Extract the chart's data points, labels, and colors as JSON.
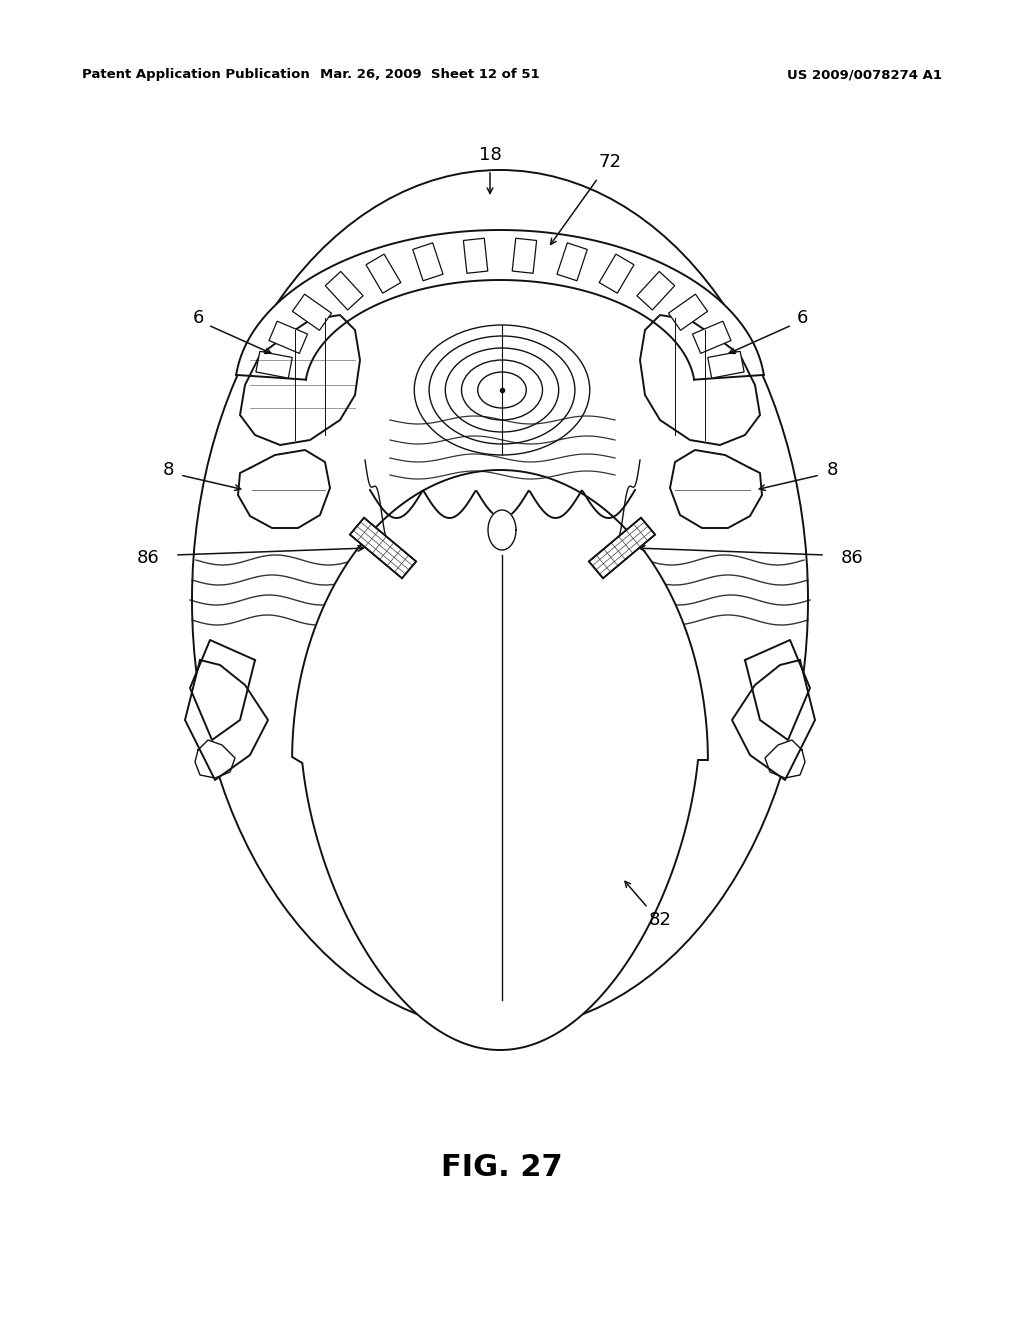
{
  "background_color": "#ffffff",
  "header_left": "Patent Application Publication",
  "header_mid": "Mar. 26, 2009  Sheet 12 of 51",
  "header_right": "US 2009/0078274 A1",
  "figure_label": "FIG. 27"
}
